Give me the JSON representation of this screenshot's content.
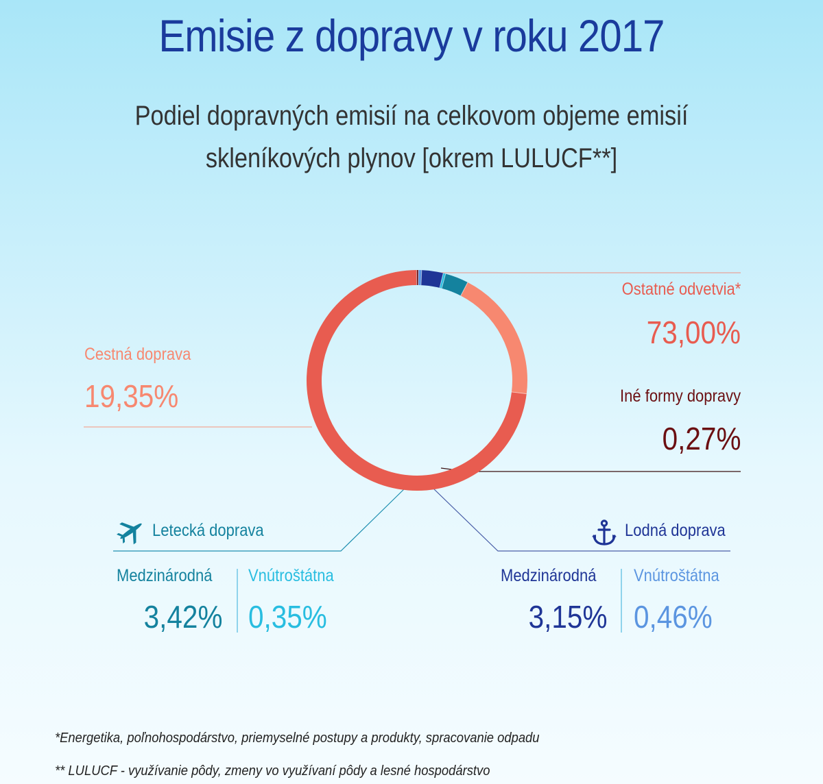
{
  "title": "Emisie z dopravy v roku 2017",
  "subtitle_line1": "Podiel dopravných emisií na celkovom objeme emisií",
  "subtitle_line2": "skleníkových plynov [okrem LULUCF**]",
  "chart_data": {
    "type": "pie",
    "title": "Emisie z dopravy v roku 2017",
    "subtitle": "Podiel dopravných emisií na celkovom objeme emisií skleníkových plynov [okrem LULUCF**]",
    "series": [
      {
        "name": "Ostatné odvetvia*",
        "value": 73.0,
        "label": "73,00%",
        "color": "#e85c50"
      },
      {
        "name": "Iné formy dopravy",
        "value": 0.27,
        "label": "0,27%",
        "color": "#6b0f12"
      },
      {
        "name": "Lodná doprava – Vnútroštátna",
        "value": 0.46,
        "label": "0,46%",
        "color": "#5b95e0"
      },
      {
        "name": "Lodná doprava – Medzinárodná",
        "value": 3.15,
        "label": "3,15%",
        "color": "#1f3596"
      },
      {
        "name": "Letecká doprava – Vnútroštátna",
        "value": 0.35,
        "label": "0,35%",
        "color": "#28bde0"
      },
      {
        "name": "Letecká doprava – Medzinárodná",
        "value": 3.42,
        "label": "3,42%",
        "color": "#14829e"
      },
      {
        "name": "Cestná doprava",
        "value": 19.35,
        "label": "19,35%",
        "color": "#f78870"
      }
    ]
  },
  "labels": {
    "ostatne_name": "Ostatné odvetvia*",
    "ostatne_value": "73,00%",
    "ine_name": "Iné formy dopravy",
    "ine_value": "0,27%",
    "cestna_name": "Cestná doprava",
    "cestna_value": "19,35%",
    "letecka_title": "Letecká doprava",
    "letecka_medz_name": "Medzinárodná",
    "letecka_medz_value": "3,42%",
    "letecka_vnut_name": "Vnútroštátna",
    "letecka_vnut_value": "0,35%",
    "lodna_title": "Lodná doprava",
    "lodna_medz_name": "Medzinárodná",
    "lodna_medz_value": "3,15%",
    "lodna_vnut_name": "Vnútroštátna",
    "lodna_vnut_value": "0,46%"
  },
  "colors": {
    "title": "#1a3b9c",
    "ostatne": "#e85c50",
    "ine": "#6b0f12",
    "cestna": "#f78870",
    "letecka_medz": "#14829e",
    "letecka_vnut": "#28bde0",
    "lodna_medz": "#1f3596",
    "lodna_vnut": "#5b95e0"
  },
  "icons": {
    "plane": "airplane-icon",
    "anchor": "anchor-icon"
  },
  "footnotes": [
    "*Energetika, poľnohospodárstvo, priemyselné postupy a produkty, spracovanie odpadu",
    "** LULUCF - využívanie pôdy, zmeny vo využívaní pôdy a lesné hospodárstvo"
  ]
}
